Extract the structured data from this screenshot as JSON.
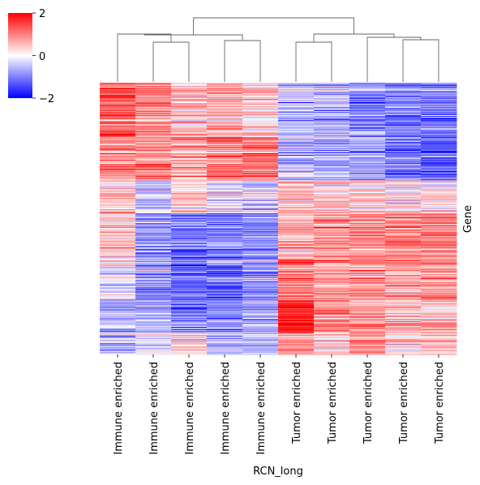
{
  "chart_data": {
    "type": "heatmap",
    "xlabel": "RCN_long",
    "ylabel": "Gene",
    "columns": [
      "Immune enriched",
      "Immune enriched",
      "Immune enriched",
      "Immune enriched",
      "Immune enriched",
      "Tumor enriched",
      "Tumor enriched",
      "Tumor enriched",
      "Tumor enriched",
      "Tumor enriched"
    ],
    "colorbar": {
      "min": -2,
      "max": 2,
      "ticks": [
        "2",
        "0",
        "−2"
      ]
    },
    "colormap": [
      "#0000ff",
      "#ffffff",
      "#ff0000"
    ],
    "clustering": "hierarchical, rows and columns; column dendrogram separates Immune enriched from Tumor enriched",
    "pattern": [
      {
        "bands": 5,
        "means": [
          1.2,
          0.9,
          0.5,
          0.7,
          0.3,
          -0.5,
          -0.6,
          -0.9,
          -1.1,
          -1.0
        ]
      },
      {
        "bands": 4,
        "means": [
          0.9,
          1.0,
          0.7,
          1.0,
          1.2,
          -0.4,
          -0.6,
          -0.8,
          -1.0,
          -1.2
        ]
      },
      {
        "bands": 3,
        "means": [
          0.4,
          -0.5,
          0.3,
          -0.2,
          -0.3,
          0.6,
          0.4,
          0.3,
          0.2,
          0.1
        ]
      },
      {
        "bands": 4,
        "means": [
          0.5,
          -0.8,
          -1.0,
          -0.9,
          -0.8,
          0.6,
          0.8,
          1.0,
          0.9,
          1.1
        ]
      },
      {
        "bands": 4,
        "means": [
          -0.2,
          -0.9,
          -1.2,
          -1.1,
          -0.9,
          1.0,
          0.7,
          0.8,
          0.7,
          0.8
        ]
      },
      {
        "bands": 3,
        "means": [
          -0.6,
          -0.6,
          -1.0,
          -0.9,
          -0.6,
          1.8,
          1.0,
          0.8,
          0.6,
          0.5
        ]
      },
      {
        "bands": 2,
        "means": [
          -0.6,
          0.0,
          0.4,
          -0.4,
          -0.5,
          0.9,
          0.4,
          1.0,
          0.3,
          0.4
        ]
      }
    ],
    "rows_per_band": 20
  }
}
